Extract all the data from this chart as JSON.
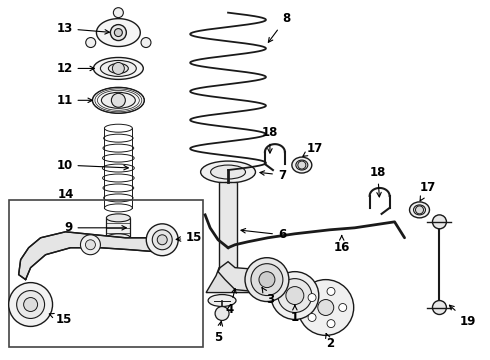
{
  "bg_color": "#ffffff",
  "line_color": "#1a1a1a",
  "label_color": "#000000",
  "fig_width": 4.9,
  "fig_height": 3.6,
  "dpi": 100,
  "font_size": 8.5,
  "font_bold": true
}
